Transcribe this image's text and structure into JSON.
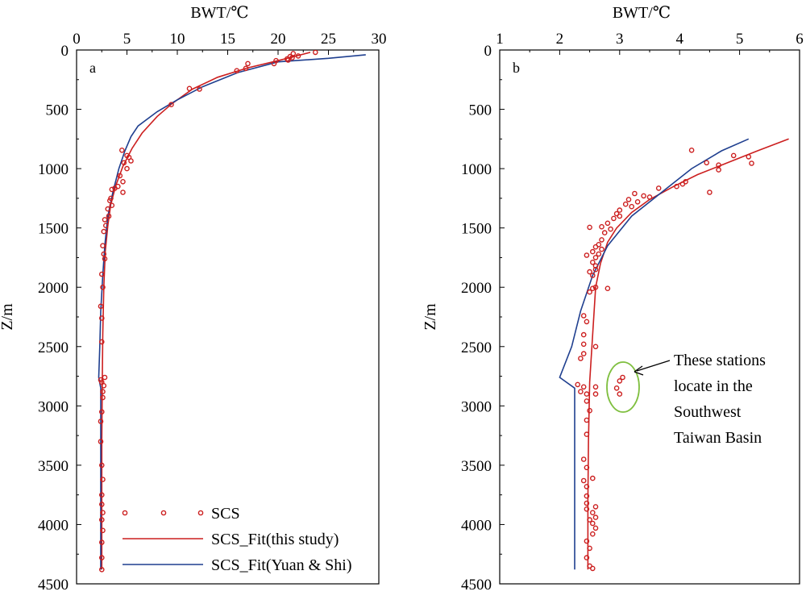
{
  "legend": {
    "entries": [
      {
        "label": "SCS",
        "color": "#cc1f1f",
        "kind": "markers"
      },
      {
        "label": "SCS_Fit(this study)",
        "color": "#cc1f1f",
        "kind": "line"
      },
      {
        "label": "SCS_Fit(Yuan & Shi)",
        "color": "#1f3f8f",
        "kind": "line"
      }
    ],
    "placement": "bottom-right of panel a"
  },
  "annotation": {
    "lines": [
      "These stations",
      "locate in the",
      "Southwest",
      "Taiwan Basin"
    ],
    "circle_color": "#7fbf3f",
    "arrow": true
  },
  "colors": {
    "observed": "#cc1f1f",
    "fit_this_study": "#cc1f1f",
    "fit_yuan_shi": "#1f3f8f"
  },
  "chart_data": [
    {
      "type": "scatter",
      "panel": "a",
      "panel_label": "a",
      "xlabel": "BWT/℃",
      "ylabel": "Z/m",
      "x_axis_position": "top",
      "y_axis_inverted": true,
      "xlim": [
        0,
        30
      ],
      "ylim": [
        0,
        4500
      ],
      "x_ticks": [
        "0",
        "5",
        "10",
        "15",
        "20",
        "25",
        "30"
      ],
      "y_ticks": [
        "0",
        "500",
        "1000",
        "1500",
        "2000",
        "2500",
        "3000",
        "3500",
        "4000",
        "4500"
      ],
      "grid": false,
      "series": [
        {
          "name": "SCS",
          "kind": "markers",
          "points": [
            [
              23.7,
              20
            ],
            [
              21.5,
              30
            ],
            [
              22,
              50
            ],
            [
              21.2,
              55
            ],
            [
              21.4,
              65
            ],
            [
              20.9,
              75
            ],
            [
              21,
              85
            ],
            [
              19.8,
              90
            ],
            [
              19.6,
              115
            ],
            [
              17,
              115
            ],
            [
              16.8,
              155
            ],
            [
              15.9,
              175
            ],
            [
              12.2,
              330
            ],
            [
              11.2,
              325
            ],
            [
              9.4,
              460
            ],
            [
              4.5,
              845
            ],
            [
              5,
              890
            ],
            [
              5.2,
              905
            ],
            [
              5.4,
              935
            ],
            [
              4.7,
              950
            ],
            [
              5,
              1000
            ],
            [
              4.3,
              1060
            ],
            [
              4.6,
              1110
            ],
            [
              4.1,
              1150
            ],
            [
              3.8,
              1165
            ],
            [
              3.5,
              1175
            ],
            [
              4.6,
              1200
            ],
            [
              3.4,
              1250
            ],
            [
              3.3,
              1270
            ],
            [
              3.5,
              1310
            ],
            [
              3.1,
              1340
            ],
            [
              3.2,
              1400
            ],
            [
              2.8,
              1430
            ],
            [
              2.9,
              1480
            ],
            [
              2.7,
              1530
            ],
            [
              2.6,
              1650
            ],
            [
              2.7,
              1720
            ],
            [
              2.8,
              1760
            ],
            [
              2.5,
              1890
            ],
            [
              2.6,
              2000
            ],
            [
              2.4,
              2160
            ],
            [
              2.5,
              2260
            ],
            [
              2.5,
              2460
            ],
            [
              2.4,
              2780
            ],
            [
              2.5,
              2800
            ],
            [
              2.8,
              2760
            ],
            [
              2.7,
              2830
            ],
            [
              2.6,
              2880
            ],
            [
              2.6,
              2930
            ],
            [
              2.5,
              3050
            ],
            [
              2.4,
              3130
            ],
            [
              2.4,
              3300
            ],
            [
              2.5,
              3500
            ],
            [
              2.6,
              3620
            ],
            [
              2.5,
              3750
            ],
            [
              2.5,
              3830
            ],
            [
              2.6,
              3900
            ],
            [
              2.5,
              3960
            ],
            [
              2.6,
              4050
            ],
            [
              2.5,
              4150
            ],
            [
              2.5,
              4280
            ],
            [
              2.5,
              4380
            ]
          ]
        },
        {
          "name": "SCS_Fit(this study)",
          "kind": "line",
          "points": [
            [
              23.2,
              20
            ],
            [
              20,
              90
            ],
            [
              17,
              150
            ],
            [
              14,
              230
            ],
            [
              11.5,
              330
            ],
            [
              9.5,
              450
            ],
            [
              8,
              560
            ],
            [
              6.5,
              700
            ],
            [
              5.5,
              830
            ],
            [
              4.6,
              980
            ],
            [
              3.9,
              1140
            ],
            [
              3.4,
              1300
            ],
            [
              3.1,
              1480
            ],
            [
              2.85,
              1700
            ],
            [
              2.7,
              2000
            ],
            [
              2.6,
              2400
            ],
            [
              2.55,
              2800
            ],
            [
              2.5,
              3300
            ],
            [
              2.5,
              3800
            ],
            [
              2.5,
              4380
            ]
          ]
        },
        {
          "name": "SCS_Fit(Yuan & Shi)",
          "kind": "line",
          "points": [
            [
              28.7,
              40
            ],
            [
              25,
              70
            ],
            [
              20,
              100
            ],
            [
              16,
              190
            ],
            [
              12.5,
              310
            ],
            [
              10,
              420
            ],
            [
              8,
              520
            ],
            [
              6.1,
              640
            ],
            [
              5.4,
              730
            ],
            [
              4.8,
              850
            ],
            [
              4.2,
              1000
            ],
            [
              3.6,
              1200
            ],
            [
              3.1,
              1400
            ],
            [
              2.8,
              1650
            ],
            [
              2.6,
              1900
            ],
            [
              2.4,
              2200
            ],
            [
              2.3,
              2500
            ],
            [
              2.2,
              2760
            ],
            [
              2.4,
              2850
            ],
            [
              2.4,
              4380
            ]
          ]
        }
      ]
    },
    {
      "type": "scatter",
      "panel": "b",
      "panel_label": "b",
      "xlabel": "BWT/℃",
      "ylabel": "Z/m",
      "x_axis_position": "top",
      "y_axis_inverted": true,
      "xlim": [
        1,
        6
      ],
      "ylim": [
        0,
        4500
      ],
      "x_ticks": [
        "1",
        "2",
        "3",
        "4",
        "5",
        "6"
      ],
      "y_ticks": [
        "0",
        "500",
        "1000",
        "1500",
        "2000",
        "2500",
        "3000",
        "3500",
        "4000",
        "4500"
      ],
      "grid": false,
      "series": [
        {
          "name": "SCS",
          "kind": "markers",
          "points": [
            [
              4.2,
              845
            ],
            [
              4.9,
              890
            ],
            [
              5.15,
              900
            ],
            [
              4.45,
              950
            ],
            [
              5.2,
              955
            ],
            [
              4.65,
              970
            ],
            [
              4.65,
              1010
            ],
            [
              4.1,
              1110
            ],
            [
              4.05,
              1130
            ],
            [
              3.95,
              1150
            ],
            [
              3.65,
              1165
            ],
            [
              4.5,
              1200
            ],
            [
              3.25,
              1210
            ],
            [
              3.4,
              1230
            ],
            [
              3.5,
              1240
            ],
            [
              3.15,
              1260
            ],
            [
              3.3,
              1280
            ],
            [
              3.1,
              1300
            ],
            [
              3.2,
              1320
            ],
            [
              3.0,
              1350
            ],
            [
              2.95,
              1380
            ],
            [
              3.0,
              1400
            ],
            [
              2.9,
              1420
            ],
            [
              2.8,
              1460
            ],
            [
              2.7,
              1490
            ],
            [
              2.85,
              1510
            ],
            [
              2.5,
              1495
            ],
            [
              2.75,
              1540
            ],
            [
              2.7,
              1600
            ],
            [
              2.65,
              1640
            ],
            [
              2.6,
              1660
            ],
            [
              2.7,
              1680
            ],
            [
              2.55,
              1700
            ],
            [
              2.65,
              1720
            ],
            [
              2.45,
              1730
            ],
            [
              2.6,
              1750
            ],
            [
              2.55,
              1790
            ],
            [
              2.6,
              1820
            ],
            [
              2.6,
              1850
            ],
            [
              2.5,
              1870
            ],
            [
              2.55,
              1900
            ],
            [
              2.6,
              2000
            ],
            [
              2.55,
              2010
            ],
            [
              2.8,
              2010
            ],
            [
              2.5,
              2040
            ],
            [
              2.4,
              2240
            ],
            [
              2.45,
              2290
            ],
            [
              2.4,
              2400
            ],
            [
              2.4,
              2480
            ],
            [
              2.6,
              2500
            ],
            [
              2.4,
              2560
            ],
            [
              2.35,
              2600
            ],
            [
              3.05,
              2760
            ],
            [
              3.0,
              2790
            ],
            [
              2.95,
              2850
            ],
            [
              3.0,
              2900
            ],
            [
              2.6,
              2840
            ],
            [
              2.6,
              2900
            ],
            [
              2.3,
              2820
            ],
            [
              2.4,
              2840
            ],
            [
              2.35,
              2880
            ],
            [
              2.45,
              2900
            ],
            [
              2.45,
              2960
            ],
            [
              2.5,
              3040
            ],
            [
              2.45,
              3120
            ],
            [
              2.45,
              3240
            ],
            [
              2.4,
              3450
            ],
            [
              2.45,
              3520
            ],
            [
              2.55,
              3610
            ],
            [
              2.4,
              3630
            ],
            [
              2.45,
              3680
            ],
            [
              2.45,
              3760
            ],
            [
              2.45,
              3820
            ],
            [
              2.45,
              3870
            ],
            [
              2.6,
              3850
            ],
            [
              2.55,
              3900
            ],
            [
              2.6,
              3940
            ],
            [
              2.5,
              3960
            ],
            [
              2.55,
              3990
            ],
            [
              2.6,
              4030
            ],
            [
              2.55,
              4080
            ],
            [
              2.45,
              4140
            ],
            [
              2.5,
              4200
            ],
            [
              2.45,
              4280
            ],
            [
              2.5,
              4350
            ],
            [
              2.55,
              4370
            ]
          ]
        },
        {
          "name": "SCS_Fit(this study)",
          "kind": "line",
          "points": [
            [
              5.82,
              750
            ],
            [
              5.3,
              850
            ],
            [
              4.8,
              950
            ],
            [
              4.3,
              1050
            ],
            [
              3.9,
              1150
            ],
            [
              3.5,
              1260
            ],
            [
              3.2,
              1370
            ],
            [
              2.95,
              1500
            ],
            [
              2.8,
              1620
            ],
            [
              2.68,
              1800
            ],
            [
              2.6,
              2000
            ],
            [
              2.55,
              2400
            ],
            [
              2.5,
              2800
            ],
            [
              2.48,
              3300
            ],
            [
              2.47,
              3800
            ],
            [
              2.47,
              4380
            ]
          ]
        },
        {
          "name": "SCS_Fit(Yuan & Shi)",
          "kind": "line",
          "points": [
            [
              5.15,
              750
            ],
            [
              4.7,
              850
            ],
            [
              4.2,
              1000
            ],
            [
              3.7,
              1200
            ],
            [
              3.2,
              1400
            ],
            [
              2.8,
              1650
            ],
            [
              2.55,
              1900
            ],
            [
              2.35,
              2200
            ],
            [
              2.2,
              2500
            ],
            [
              2.0,
              2760
            ],
            [
              2.25,
              2850
            ],
            [
              2.25,
              4380
            ]
          ]
        }
      ]
    }
  ]
}
